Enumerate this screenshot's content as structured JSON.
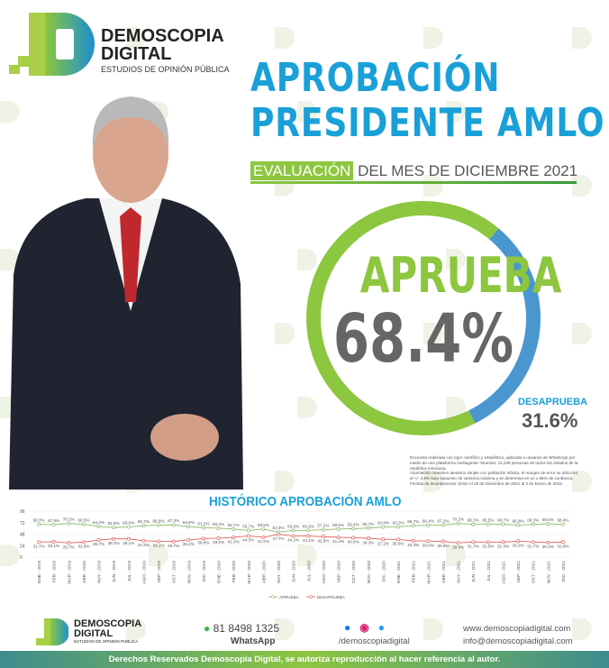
{
  "brand": {
    "name1": "DEMOSCOPIA",
    "name2": "DIGITAL",
    "tagline": "ESTUDIOS DE OPINIÓN PÚBLICA",
    "colors": {
      "blue": "#1aa0d8",
      "green": "#8dc63f"
    }
  },
  "header": {
    "title_line1": "APROBACIÓN",
    "title_line2": "PRESIDENTE AMLO",
    "eval_highlight": "EVALUACIÓN",
    "eval_rest": "DEL MES DE DICIEMBRE 2021"
  },
  "result": {
    "approve_label": "APRUEBA",
    "approve_value": "68.4%",
    "approve_fraction": 0.684,
    "disapprove_label": "DESAPRUEBA",
    "disapprove_value": "31.6%"
  },
  "methodology": [
    "Encuesta realizada con rigor científico y estadístico, aplicada a usuarios de WhatsApp por medio de una plataforma multiagente. Muestra: 24,228 personas de todos los estados de la república mexicana.",
    "Asumiendo muestreo aleatorio simple con población infinita, el margen de error se ubica en el +/- 3.8% bajo supuesto de varianza máxima y se determina en un ± 95% de confianza.",
    "Fechas de levantamiento: Entre el 28 de Diciembre de 2021 al 2 de Enero de 2022."
  ],
  "chart_data": {
    "type": "line",
    "title": "HISTÓRICO APROBACIÓN AMLO",
    "ylim": [
      0,
      96
    ],
    "yticks": [
      "0",
      "24",
      "48",
      "72",
      "96"
    ],
    "grid": true,
    "legend": "bottom",
    "categories": [
      "ENE - 2019",
      "FEB - 2019",
      "MAR - 2019",
      "ABR - 2019",
      "MAY - 2019",
      "JUN - 2019",
      "JUL - 2019",
      "AGO - 2019",
      "SEP - 2019",
      "OCT - 2019",
      "NOV - 2019",
      "DIC - 2019",
      "ENE - 2020",
      "FEB - 2020",
      "MAR - 2020",
      "ABR - 2020",
      "MAY - 2020",
      "JUN - 2020",
      "JUL - 2020",
      "AGO - 2020",
      "SEP - 2020",
      "OCT - 2020",
      "NOV - 2020",
      "DIC - 2020",
      "ENE - 2021",
      "FEB - 2021",
      "MAR - 2021",
      "ABR - 2021",
      "MAY - 2021",
      "JUN - 2021",
      "JUL - 2021",
      "AGO - 2021",
      "SEP - 2021",
      "OCT - 2021",
      "NOV - 2021",
      "DIC - 2021"
    ],
    "series": [
      {
        "name": "APRUEBA",
        "color": "#8bb86b",
        "values": [
          68.3,
          67.9,
          70.2,
          68.5,
          64.2,
          61.8,
          63.0,
          65.7,
          66.8,
          67.3,
          63.8,
          61.2,
          60.4,
          58.7,
          55.7,
          58.5,
          52.3,
          55.8,
          55.9,
          57.2,
          58.6,
          59.4,
          60.7,
          62.8,
          63.2,
          65.7,
          66.4,
          67.2,
          70.2,
          68.3,
          68.5,
          68.7,
          66.8,
          68.3,
          69.6,
          68.4
        ]
      },
      {
        "name": "DESAPRUEBA",
        "color": "#e0605a",
        "values": [
          31.7,
          32.1,
          29.7,
          31.5,
          35.7,
          38.2,
          38.1,
          34.3,
          33.1,
          32.7,
          36.2,
          38.8,
          39.6,
          41.3,
          44.3,
          41.5,
          47.7,
          44.2,
          44.1,
          42.8,
          41.4,
          40.6,
          39.3,
          37.2,
          36.8,
          34.3,
          33.6,
          32.8,
          29.8,
          31.7,
          31.5,
          31.3,
          33.2,
          31.7,
          30.4,
          31.6
        ]
      }
    ]
  },
  "footer": {
    "phone": "81 8498 1325",
    "phone_label": "WhatsApp",
    "social": "/demoscopiadigital",
    "web": "www.demoscopiadigital.com",
    "email": "info@demoscopiadigital.com",
    "rights": "Derechos Reservados Demoscopia Digital, se autoriza reproducción al hacer referencia al autor."
  }
}
